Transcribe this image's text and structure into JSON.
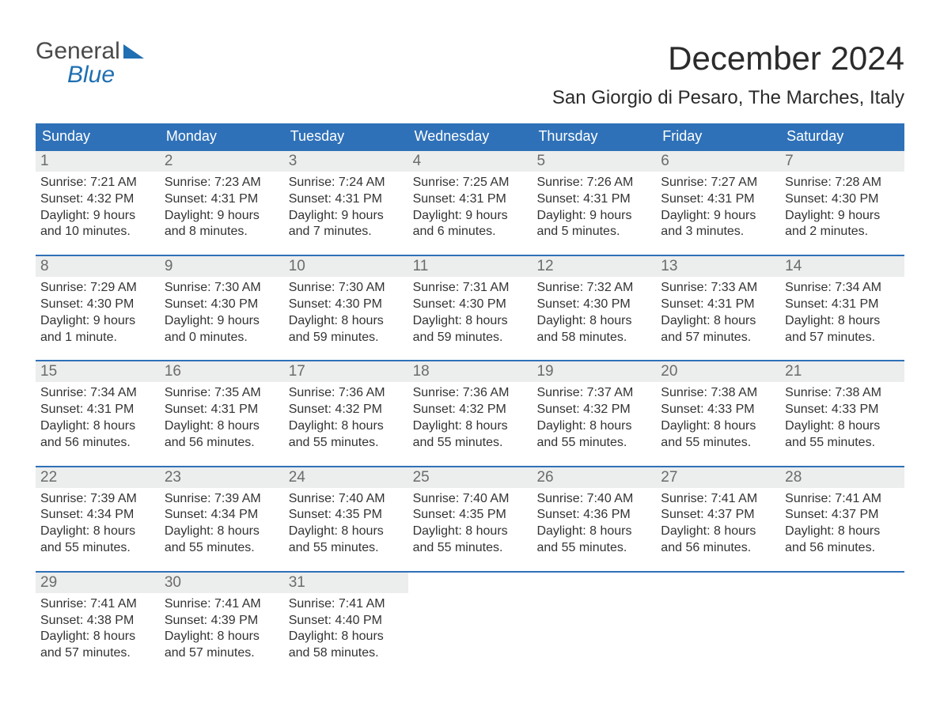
{
  "logo": {
    "line1": "General",
    "line2": "Blue"
  },
  "title": "December 2024",
  "location": "San Giorgio di Pesaro, The Marches, Italy",
  "colors": {
    "header_bg": "#2f71b8",
    "header_text": "#ffffff",
    "daynum_bg": "#eceded",
    "daynum_text": "#6b6b6b",
    "body_text": "#333333",
    "rule": "#2f71b8",
    "logo_accent": "#1f6fb2"
  },
  "days_of_week": [
    "Sunday",
    "Monday",
    "Tuesday",
    "Wednesday",
    "Thursday",
    "Friday",
    "Saturday"
  ],
  "weeks": [
    [
      {
        "n": "1",
        "sunrise": "Sunrise: 7:21 AM",
        "sunset": "Sunset: 4:32 PM",
        "d1": "Daylight: 9 hours",
        "d2": "and 10 minutes."
      },
      {
        "n": "2",
        "sunrise": "Sunrise: 7:23 AM",
        "sunset": "Sunset: 4:31 PM",
        "d1": "Daylight: 9 hours",
        "d2": "and 8 minutes."
      },
      {
        "n": "3",
        "sunrise": "Sunrise: 7:24 AM",
        "sunset": "Sunset: 4:31 PM",
        "d1": "Daylight: 9 hours",
        "d2": "and 7 minutes."
      },
      {
        "n": "4",
        "sunrise": "Sunrise: 7:25 AM",
        "sunset": "Sunset: 4:31 PM",
        "d1": "Daylight: 9 hours",
        "d2": "and 6 minutes."
      },
      {
        "n": "5",
        "sunrise": "Sunrise: 7:26 AM",
        "sunset": "Sunset: 4:31 PM",
        "d1": "Daylight: 9 hours",
        "d2": "and 5 minutes."
      },
      {
        "n": "6",
        "sunrise": "Sunrise: 7:27 AM",
        "sunset": "Sunset: 4:31 PM",
        "d1": "Daylight: 9 hours",
        "d2": "and 3 minutes."
      },
      {
        "n": "7",
        "sunrise": "Sunrise: 7:28 AM",
        "sunset": "Sunset: 4:30 PM",
        "d1": "Daylight: 9 hours",
        "d2": "and 2 minutes."
      }
    ],
    [
      {
        "n": "8",
        "sunrise": "Sunrise: 7:29 AM",
        "sunset": "Sunset: 4:30 PM",
        "d1": "Daylight: 9 hours",
        "d2": "and 1 minute."
      },
      {
        "n": "9",
        "sunrise": "Sunrise: 7:30 AM",
        "sunset": "Sunset: 4:30 PM",
        "d1": "Daylight: 9 hours",
        "d2": "and 0 minutes."
      },
      {
        "n": "10",
        "sunrise": "Sunrise: 7:30 AM",
        "sunset": "Sunset: 4:30 PM",
        "d1": "Daylight: 8 hours",
        "d2": "and 59 minutes."
      },
      {
        "n": "11",
        "sunrise": "Sunrise: 7:31 AM",
        "sunset": "Sunset: 4:30 PM",
        "d1": "Daylight: 8 hours",
        "d2": "and 59 minutes."
      },
      {
        "n": "12",
        "sunrise": "Sunrise: 7:32 AM",
        "sunset": "Sunset: 4:30 PM",
        "d1": "Daylight: 8 hours",
        "d2": "and 58 minutes."
      },
      {
        "n": "13",
        "sunrise": "Sunrise: 7:33 AM",
        "sunset": "Sunset: 4:31 PM",
        "d1": "Daylight: 8 hours",
        "d2": "and 57 minutes."
      },
      {
        "n": "14",
        "sunrise": "Sunrise: 7:34 AM",
        "sunset": "Sunset: 4:31 PM",
        "d1": "Daylight: 8 hours",
        "d2": "and 57 minutes."
      }
    ],
    [
      {
        "n": "15",
        "sunrise": "Sunrise: 7:34 AM",
        "sunset": "Sunset: 4:31 PM",
        "d1": "Daylight: 8 hours",
        "d2": "and 56 minutes."
      },
      {
        "n": "16",
        "sunrise": "Sunrise: 7:35 AM",
        "sunset": "Sunset: 4:31 PM",
        "d1": "Daylight: 8 hours",
        "d2": "and 56 minutes."
      },
      {
        "n": "17",
        "sunrise": "Sunrise: 7:36 AM",
        "sunset": "Sunset: 4:32 PM",
        "d1": "Daylight: 8 hours",
        "d2": "and 55 minutes."
      },
      {
        "n": "18",
        "sunrise": "Sunrise: 7:36 AM",
        "sunset": "Sunset: 4:32 PM",
        "d1": "Daylight: 8 hours",
        "d2": "and 55 minutes."
      },
      {
        "n": "19",
        "sunrise": "Sunrise: 7:37 AM",
        "sunset": "Sunset: 4:32 PM",
        "d1": "Daylight: 8 hours",
        "d2": "and 55 minutes."
      },
      {
        "n": "20",
        "sunrise": "Sunrise: 7:38 AM",
        "sunset": "Sunset: 4:33 PM",
        "d1": "Daylight: 8 hours",
        "d2": "and 55 minutes."
      },
      {
        "n": "21",
        "sunrise": "Sunrise: 7:38 AM",
        "sunset": "Sunset: 4:33 PM",
        "d1": "Daylight: 8 hours",
        "d2": "and 55 minutes."
      }
    ],
    [
      {
        "n": "22",
        "sunrise": "Sunrise: 7:39 AM",
        "sunset": "Sunset: 4:34 PM",
        "d1": "Daylight: 8 hours",
        "d2": "and 55 minutes."
      },
      {
        "n": "23",
        "sunrise": "Sunrise: 7:39 AM",
        "sunset": "Sunset: 4:34 PM",
        "d1": "Daylight: 8 hours",
        "d2": "and 55 minutes."
      },
      {
        "n": "24",
        "sunrise": "Sunrise: 7:40 AM",
        "sunset": "Sunset: 4:35 PM",
        "d1": "Daylight: 8 hours",
        "d2": "and 55 minutes."
      },
      {
        "n": "25",
        "sunrise": "Sunrise: 7:40 AM",
        "sunset": "Sunset: 4:35 PM",
        "d1": "Daylight: 8 hours",
        "d2": "and 55 minutes."
      },
      {
        "n": "26",
        "sunrise": "Sunrise: 7:40 AM",
        "sunset": "Sunset: 4:36 PM",
        "d1": "Daylight: 8 hours",
        "d2": "and 55 minutes."
      },
      {
        "n": "27",
        "sunrise": "Sunrise: 7:41 AM",
        "sunset": "Sunset: 4:37 PM",
        "d1": "Daylight: 8 hours",
        "d2": "and 56 minutes."
      },
      {
        "n": "28",
        "sunrise": "Sunrise: 7:41 AM",
        "sunset": "Sunset: 4:37 PM",
        "d1": "Daylight: 8 hours",
        "d2": "and 56 minutes."
      }
    ],
    [
      {
        "n": "29",
        "sunrise": "Sunrise: 7:41 AM",
        "sunset": "Sunset: 4:38 PM",
        "d1": "Daylight: 8 hours",
        "d2": "and 57 minutes."
      },
      {
        "n": "30",
        "sunrise": "Sunrise: 7:41 AM",
        "sunset": "Sunset: 4:39 PM",
        "d1": "Daylight: 8 hours",
        "d2": "and 57 minutes."
      },
      {
        "n": "31",
        "sunrise": "Sunrise: 7:41 AM",
        "sunset": "Sunset: 4:40 PM",
        "d1": "Daylight: 8 hours",
        "d2": "and 58 minutes."
      },
      null,
      null,
      null,
      null
    ]
  ]
}
